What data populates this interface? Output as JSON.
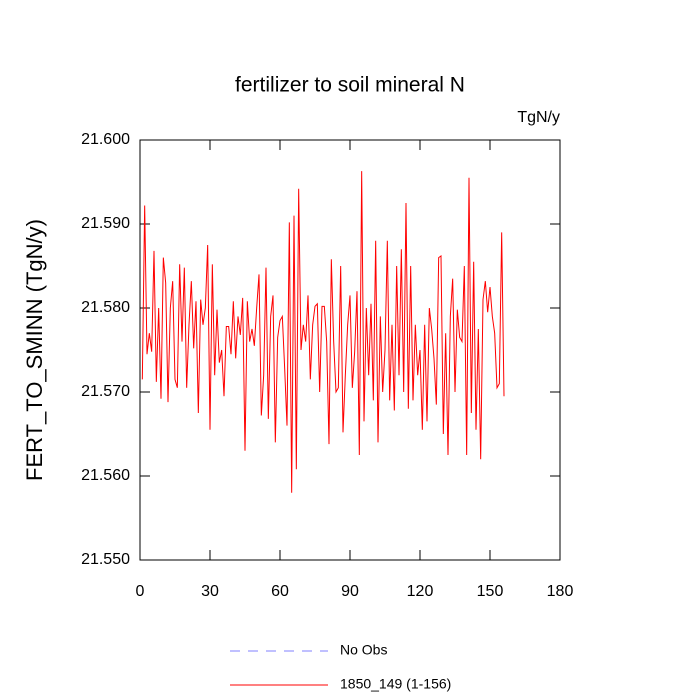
{
  "chart_data": {
    "type": "line",
    "title": "fertilizer to soil mineral N",
    "units": "TgN/y",
    "y_label": "FERT_TO_SMINN  (TgN/y)",
    "xlim": [
      0,
      180
    ],
    "xticks": [
      0,
      30,
      60,
      90,
      120,
      150,
      180
    ],
    "ylim": [
      21.55,
      21.6
    ],
    "yticks": [
      {
        "value": 21.55,
        "label": "21.550"
      },
      {
        "value": 21.56,
        "label": "21.560"
      },
      {
        "value": 21.57,
        "label": "21.570"
      },
      {
        "value": 21.58,
        "label": "21.580"
      },
      {
        "value": 21.59,
        "label": "21.590"
      },
      {
        "value": 21.6,
        "label": "21.600"
      }
    ],
    "x": [
      1,
      2,
      3,
      4,
      5,
      6,
      7,
      8,
      9,
      10,
      11,
      12,
      13,
      14,
      15,
      16,
      17,
      18,
      19,
      20,
      21,
      22,
      23,
      24,
      25,
      26,
      27,
      28,
      29,
      30,
      31,
      32,
      33,
      34,
      35,
      36,
      37,
      38,
      39,
      40,
      41,
      42,
      43,
      44,
      45,
      46,
      47,
      48,
      49,
      50,
      51,
      52,
      53,
      54,
      55,
      56,
      57,
      58,
      59,
      60,
      61,
      62,
      63,
      64,
      65,
      66,
      67,
      68,
      69,
      70,
      71,
      72,
      73,
      74,
      75,
      76,
      77,
      78,
      79,
      80,
      81,
      82,
      83,
      84,
      85,
      86,
      87,
      88,
      89,
      90,
      91,
      92,
      93,
      94,
      95,
      96,
      97,
      98,
      99,
      100,
      101,
      102,
      103,
      104,
      105,
      106,
      107,
      108,
      109,
      110,
      111,
      112,
      113,
      114,
      115,
      116,
      117,
      118,
      119,
      120,
      121,
      122,
      123,
      124,
      125,
      126,
      127,
      128,
      129,
      130,
      131,
      132,
      133,
      134,
      135,
      136,
      137,
      138,
      139,
      140,
      141,
      142,
      143,
      144,
      145,
      146,
      147,
      148,
      149,
      150,
      151,
      152,
      153,
      154,
      155,
      156
    ],
    "series": [
      {
        "name": "1850_149 (1-156)",
        "color": "#ff0000",
        "values": [
          21.5715,
          21.5922,
          21.5745,
          21.577,
          21.5748,
          21.5868,
          21.5712,
          21.58,
          21.5692,
          21.586,
          21.583,
          21.5688,
          21.58,
          21.5832,
          21.5715,
          21.5705,
          21.5852,
          21.576,
          21.5848,
          21.5705,
          21.578,
          21.5832,
          21.5752,
          21.5808,
          21.5675,
          21.581,
          21.578,
          21.58,
          21.5875,
          21.5655,
          21.5852,
          21.572,
          21.5798,
          21.5735,
          21.575,
          21.5695,
          21.5778,
          21.5778,
          21.5745,
          21.5808,
          21.574,
          21.579,
          21.5768,
          21.5812,
          21.563,
          21.5808,
          21.576,
          21.5775,
          21.5755,
          21.58,
          21.584,
          21.5672,
          21.572,
          21.5848,
          21.5668,
          21.579,
          21.5815,
          21.564,
          21.5765,
          21.5785,
          21.579,
          21.5728,
          21.566,
          21.5902,
          21.558,
          21.591,
          21.5608,
          21.5942,
          21.575,
          21.578,
          21.576,
          21.5815,
          21.5715,
          21.578,
          21.5802,
          21.5805,
          21.57,
          21.5802,
          21.5802,
          21.576,
          21.5638,
          21.5858,
          21.576,
          21.57,
          21.5705,
          21.585,
          21.5652,
          21.572,
          21.578,
          21.5815,
          21.5705,
          21.5748,
          21.582,
          21.5625,
          21.5963,
          21.5665,
          21.58,
          21.572,
          21.5805,
          21.569,
          21.588,
          21.564,
          21.579,
          21.57,
          21.575,
          21.588,
          21.569,
          21.578,
          21.5678,
          21.585,
          21.572,
          21.587,
          21.57,
          21.5925,
          21.568,
          21.585,
          21.569,
          21.578,
          21.572,
          21.575,
          21.5655,
          21.578,
          21.5665,
          21.58,
          21.5775,
          21.574,
          21.5685,
          21.586,
          21.5862,
          21.565,
          21.577,
          21.5625,
          21.579,
          21.5835,
          21.57,
          21.5798,
          21.5765,
          21.576,
          21.585,
          21.5625,
          21.5955,
          21.5675,
          21.5855,
          21.5655,
          21.5775,
          21.562,
          21.581,
          21.5832,
          21.5795,
          21.5825,
          21.579,
          21.577,
          21.5705,
          21.571,
          21.589,
          21.5695
        ]
      }
    ],
    "extra_legend": {
      "name": "No Obs",
      "color": "#8080ff",
      "dash": "10,8"
    }
  }
}
